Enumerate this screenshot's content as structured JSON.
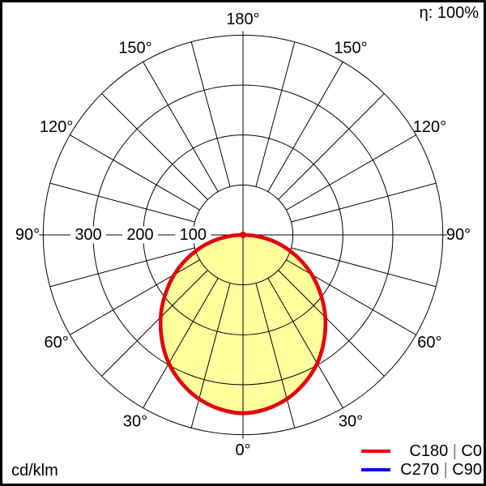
{
  "header": {
    "efficiency": "η: 100%"
  },
  "footer": {
    "unit": "cd/klm"
  },
  "legend": {
    "separator": "|",
    "items": [
      {
        "left": "C180",
        "right": "C0",
        "color": "#e60000"
      },
      {
        "left": "C270",
        "right": "C90",
        "color": "#0000e0"
      }
    ]
  },
  "polar": {
    "angle_labels": [
      {
        "text": "180°",
        "a": 180
      },
      {
        "text": "150°",
        "a": -150
      },
      {
        "text": "150°",
        "a": 150
      },
      {
        "text": "120°",
        "a": -120
      },
      {
        "text": "120°",
        "a": 120
      },
      {
        "text": "90°",
        "a": -90
      },
      {
        "text": "90°",
        "a": 90
      },
      {
        "text": "60°",
        "a": -60
      },
      {
        "text": "60°",
        "a": 60
      },
      {
        "text": "30°",
        "a": -30
      },
      {
        "text": "30°",
        "a": 30
      },
      {
        "text": "0°",
        "a": 0
      }
    ],
    "ring_labels": [
      {
        "text": "100",
        "value": 100
      },
      {
        "text": "200",
        "value": 200
      },
      {
        "text": "300",
        "value": 300
      }
    ]
  },
  "chart_data": {
    "type": "polar",
    "unit": "cd/klm",
    "efficiency_percent": 100,
    "gamma_deg": [
      0,
      15,
      30,
      45,
      60,
      75,
      90
    ],
    "series": [
      {
        "name": "C180 | C0",
        "color": "#e60000",
        "values_cd_per_klm": [
          357,
          340,
          297,
          233,
          159,
          80,
          0
        ]
      },
      {
        "name": "C270 | C90",
        "color": "#0000e0",
        "values_cd_per_klm": [
          357,
          340,
          297,
          233,
          159,
          80,
          0
        ]
      }
    ],
    "radial_ticks": [
      100,
      200,
      300
    ],
    "radial_max": 400,
    "grid_angle_step_deg": 15,
    "angle_label_step_deg": 30,
    "fill_color": "#ffff9e",
    "legend_position": "bottom-right",
    "grid": true
  }
}
